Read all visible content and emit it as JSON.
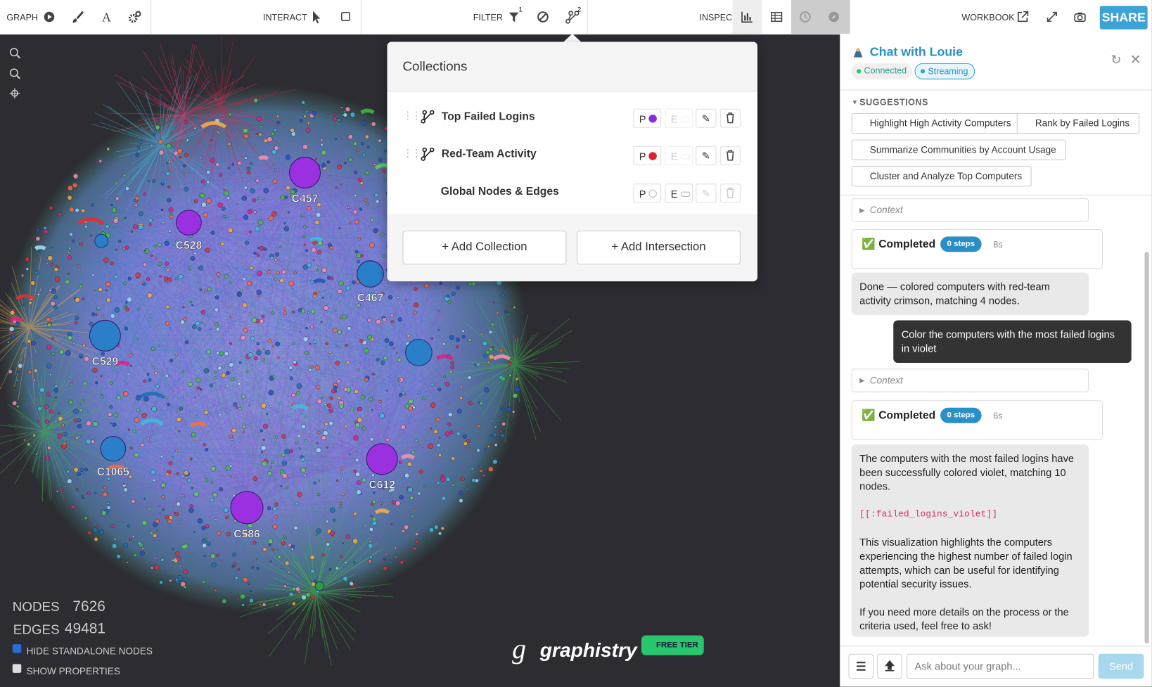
{
  "toolbar": {
    "graph": "GRAPH",
    "interact": "INTERACT",
    "filter": "FILTER",
    "filter_badge_1": "1",
    "filter_badge_2": "2",
    "inspect": "INSPECT",
    "workbook": "WORKBOOK",
    "share": "SHARE"
  },
  "graph": {
    "hubs": [
      "C457",
      "C528",
      "C467",
      "C529",
      "C1065",
      "C612",
      "C586"
    ],
    "stats": {
      "nodes_label": "NODES",
      "nodes": "7626",
      "edges_label": "EDGES",
      "edges": "49481"
    },
    "options": [
      "HIDE STANDALONE NODES",
      "SHOW PROPERTIES"
    ],
    "brand": "graphistry",
    "tier": "FREE TIER"
  },
  "collections": {
    "title": "Collections",
    "items": [
      {
        "name": "Top Failed Logins",
        "p": "P",
        "e": "E"
      },
      {
        "name": "Red-Team Activity",
        "p": "P",
        "e": "E"
      },
      {
        "name": "Global Nodes & Edges",
        "p": "P",
        "e": "E"
      }
    ],
    "add_collection": "+ Add Collection",
    "add_intersection": "+ Add Intersection"
  },
  "chat": {
    "title": "Chat with Louie",
    "connected": "Connected",
    "streaming": "Streaming",
    "suggestions_title": "SUGGESTIONS",
    "suggestions": [
      "Highlight High Activity Computers",
      "Rank by Failed Logins",
      "Summarize Communities by Account Usage",
      "Cluster and Analyze Top Computers"
    ],
    "context": "Context",
    "completed": "Completed",
    "run1": {
      "steps": "0 steps",
      "time": "8s"
    },
    "reply1": "Done — colored computers with red-team activity crimson, matching 4 nodes.",
    "user": "Color the computers with the most failed logins in violet",
    "run2": {
      "steps": "0 steps",
      "time": "6s"
    },
    "reply2": [
      "The computers with the most failed logins have been successfully colored violet, matching 10 nodes.",
      "[[:failed_logins_violet]]",
      "This visualization highlights the computers experiencing the highest number of failed login attempts, which can be useful for identifying potential security issues.",
      "If you need more details on the process or the criteria used, feel free to ask!"
    ],
    "placeholder": "Ask about your graph...",
    "send": "Send"
  }
}
